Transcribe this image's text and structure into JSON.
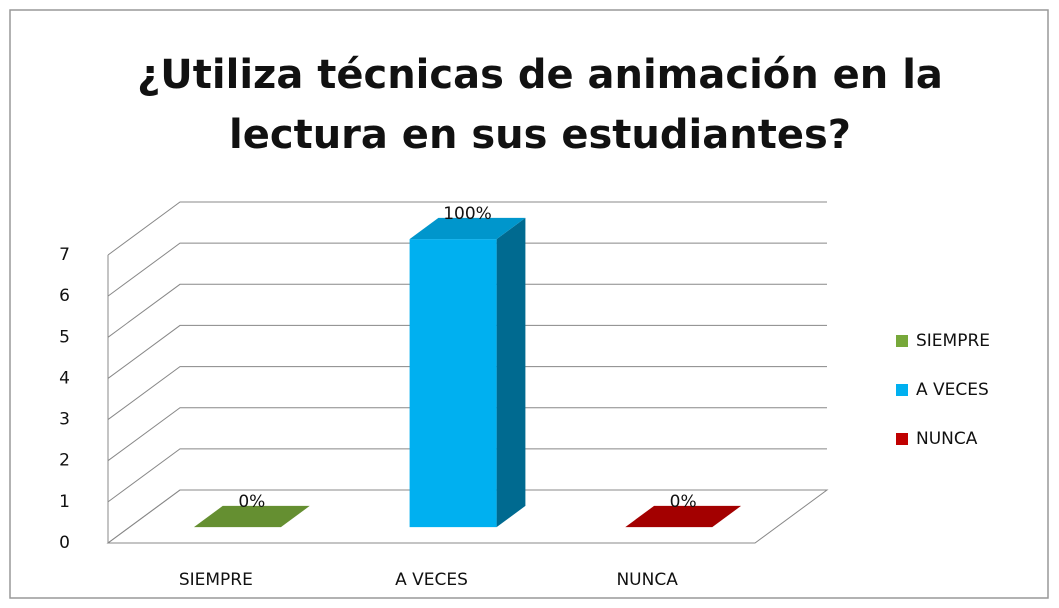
{
  "chart_data": {
    "type": "bar3d",
    "title": "¿Utiliza técnicas de animación en la lectura en sus estudiantes?",
    "title_lines": [
      "¿Utiliza técnicas de animación en la",
      "lectura en sus estudiantes?"
    ],
    "categories": [
      "SIEMPRE",
      "A VECES",
      "NUNCA"
    ],
    "values": [
      0,
      7,
      0
    ],
    "percent_labels": [
      "0%",
      "100%",
      "0%"
    ],
    "colors": [
      "#77a83a",
      "#00b0f0",
      "#c00000"
    ],
    "ylim": [
      0,
      7
    ],
    "yticks": [
      0,
      1,
      2,
      3,
      4,
      5,
      6,
      7
    ],
    "grid": true,
    "legend": "right"
  }
}
